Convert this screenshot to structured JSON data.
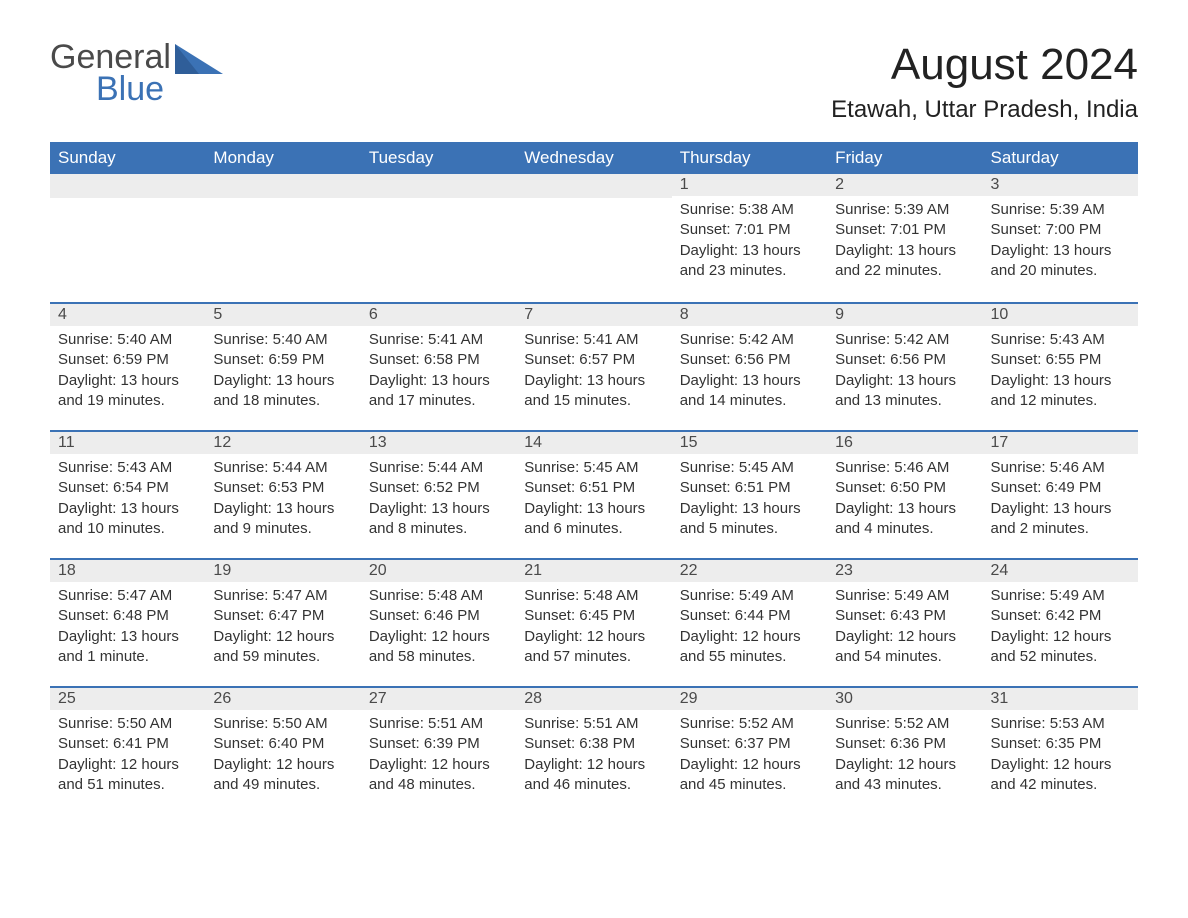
{
  "logo": {
    "text1": "General",
    "text2": "Blue",
    "tri_color": "#3b72b5"
  },
  "title": "August 2024",
  "location": "Etawah, Uttar Pradesh, India",
  "colors": {
    "header_bg": "#3b72b5",
    "header_text": "#ffffff",
    "daynum_bg": "#ededed",
    "daynum_border": "#3b72b5",
    "body_text": "#333333",
    "page_bg": "#ffffff"
  },
  "typography": {
    "title_fontsize": 44,
    "location_fontsize": 24,
    "dayname_fontsize": 17,
    "cell_fontsize": 15
  },
  "layout": {
    "columns": 7,
    "rows": 5,
    "week_start": "Sunday"
  },
  "daynames": [
    "Sunday",
    "Monday",
    "Tuesday",
    "Wednesday",
    "Thursday",
    "Friday",
    "Saturday"
  ],
  "weeks": [
    [
      {
        "day": "",
        "sunrise": "",
        "sunset": "",
        "daylight": ""
      },
      {
        "day": "",
        "sunrise": "",
        "sunset": "",
        "daylight": ""
      },
      {
        "day": "",
        "sunrise": "",
        "sunset": "",
        "daylight": ""
      },
      {
        "day": "",
        "sunrise": "",
        "sunset": "",
        "daylight": ""
      },
      {
        "day": "1",
        "sunrise": "Sunrise: 5:38 AM",
        "sunset": "Sunset: 7:01 PM",
        "daylight": "Daylight: 13 hours and 23 minutes."
      },
      {
        "day": "2",
        "sunrise": "Sunrise: 5:39 AM",
        "sunset": "Sunset: 7:01 PM",
        "daylight": "Daylight: 13 hours and 22 minutes."
      },
      {
        "day": "3",
        "sunrise": "Sunrise: 5:39 AM",
        "sunset": "Sunset: 7:00 PM",
        "daylight": "Daylight: 13 hours and 20 minutes."
      }
    ],
    [
      {
        "day": "4",
        "sunrise": "Sunrise: 5:40 AM",
        "sunset": "Sunset: 6:59 PM",
        "daylight": "Daylight: 13 hours and 19 minutes."
      },
      {
        "day": "5",
        "sunrise": "Sunrise: 5:40 AM",
        "sunset": "Sunset: 6:59 PM",
        "daylight": "Daylight: 13 hours and 18 minutes."
      },
      {
        "day": "6",
        "sunrise": "Sunrise: 5:41 AM",
        "sunset": "Sunset: 6:58 PM",
        "daylight": "Daylight: 13 hours and 17 minutes."
      },
      {
        "day": "7",
        "sunrise": "Sunrise: 5:41 AM",
        "sunset": "Sunset: 6:57 PM",
        "daylight": "Daylight: 13 hours and 15 minutes."
      },
      {
        "day": "8",
        "sunrise": "Sunrise: 5:42 AM",
        "sunset": "Sunset: 6:56 PM",
        "daylight": "Daylight: 13 hours and 14 minutes."
      },
      {
        "day": "9",
        "sunrise": "Sunrise: 5:42 AM",
        "sunset": "Sunset: 6:56 PM",
        "daylight": "Daylight: 13 hours and 13 minutes."
      },
      {
        "day": "10",
        "sunrise": "Sunrise: 5:43 AM",
        "sunset": "Sunset: 6:55 PM",
        "daylight": "Daylight: 13 hours and 12 minutes."
      }
    ],
    [
      {
        "day": "11",
        "sunrise": "Sunrise: 5:43 AM",
        "sunset": "Sunset: 6:54 PM",
        "daylight": "Daylight: 13 hours and 10 minutes."
      },
      {
        "day": "12",
        "sunrise": "Sunrise: 5:44 AM",
        "sunset": "Sunset: 6:53 PM",
        "daylight": "Daylight: 13 hours and 9 minutes."
      },
      {
        "day": "13",
        "sunrise": "Sunrise: 5:44 AM",
        "sunset": "Sunset: 6:52 PM",
        "daylight": "Daylight: 13 hours and 8 minutes."
      },
      {
        "day": "14",
        "sunrise": "Sunrise: 5:45 AM",
        "sunset": "Sunset: 6:51 PM",
        "daylight": "Daylight: 13 hours and 6 minutes."
      },
      {
        "day": "15",
        "sunrise": "Sunrise: 5:45 AM",
        "sunset": "Sunset: 6:51 PM",
        "daylight": "Daylight: 13 hours and 5 minutes."
      },
      {
        "day": "16",
        "sunrise": "Sunrise: 5:46 AM",
        "sunset": "Sunset: 6:50 PM",
        "daylight": "Daylight: 13 hours and 4 minutes."
      },
      {
        "day": "17",
        "sunrise": "Sunrise: 5:46 AM",
        "sunset": "Sunset: 6:49 PM",
        "daylight": "Daylight: 13 hours and 2 minutes."
      }
    ],
    [
      {
        "day": "18",
        "sunrise": "Sunrise: 5:47 AM",
        "sunset": "Sunset: 6:48 PM",
        "daylight": "Daylight: 13 hours and 1 minute."
      },
      {
        "day": "19",
        "sunrise": "Sunrise: 5:47 AM",
        "sunset": "Sunset: 6:47 PM",
        "daylight": "Daylight: 12 hours and 59 minutes."
      },
      {
        "day": "20",
        "sunrise": "Sunrise: 5:48 AM",
        "sunset": "Sunset: 6:46 PM",
        "daylight": "Daylight: 12 hours and 58 minutes."
      },
      {
        "day": "21",
        "sunrise": "Sunrise: 5:48 AM",
        "sunset": "Sunset: 6:45 PM",
        "daylight": "Daylight: 12 hours and 57 minutes."
      },
      {
        "day": "22",
        "sunrise": "Sunrise: 5:49 AM",
        "sunset": "Sunset: 6:44 PM",
        "daylight": "Daylight: 12 hours and 55 minutes."
      },
      {
        "day": "23",
        "sunrise": "Sunrise: 5:49 AM",
        "sunset": "Sunset: 6:43 PM",
        "daylight": "Daylight: 12 hours and 54 minutes."
      },
      {
        "day": "24",
        "sunrise": "Sunrise: 5:49 AM",
        "sunset": "Sunset: 6:42 PM",
        "daylight": "Daylight: 12 hours and 52 minutes."
      }
    ],
    [
      {
        "day": "25",
        "sunrise": "Sunrise: 5:50 AM",
        "sunset": "Sunset: 6:41 PM",
        "daylight": "Daylight: 12 hours and 51 minutes."
      },
      {
        "day": "26",
        "sunrise": "Sunrise: 5:50 AM",
        "sunset": "Sunset: 6:40 PM",
        "daylight": "Daylight: 12 hours and 49 minutes."
      },
      {
        "day": "27",
        "sunrise": "Sunrise: 5:51 AM",
        "sunset": "Sunset: 6:39 PM",
        "daylight": "Daylight: 12 hours and 48 minutes."
      },
      {
        "day": "28",
        "sunrise": "Sunrise: 5:51 AM",
        "sunset": "Sunset: 6:38 PM",
        "daylight": "Daylight: 12 hours and 46 minutes."
      },
      {
        "day": "29",
        "sunrise": "Sunrise: 5:52 AM",
        "sunset": "Sunset: 6:37 PM",
        "daylight": "Daylight: 12 hours and 45 minutes."
      },
      {
        "day": "30",
        "sunrise": "Sunrise: 5:52 AM",
        "sunset": "Sunset: 6:36 PM",
        "daylight": "Daylight: 12 hours and 43 minutes."
      },
      {
        "day": "31",
        "sunrise": "Sunrise: 5:53 AM",
        "sunset": "Sunset: 6:35 PM",
        "daylight": "Daylight: 12 hours and 42 minutes."
      }
    ]
  ]
}
